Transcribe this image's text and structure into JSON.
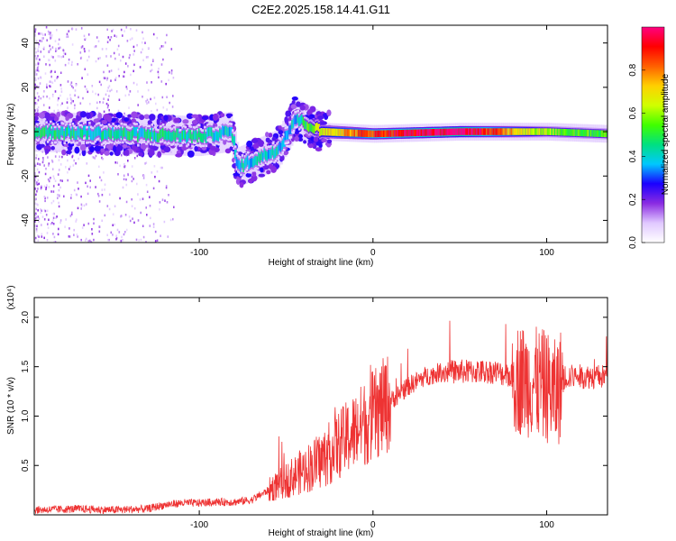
{
  "title": "C2E2.2025.158.14.41.G11",
  "chart_data": [
    {
      "type": "heatmap",
      "xlabel": "Height of straight line (km)",
      "ylabel": "Frequency (Hz)",
      "xlim": [
        -195,
        135
      ],
      "ylim": [
        -50,
        48
      ],
      "x_ticks": [
        -100,
        0,
        100
      ],
      "x_tick_labels": [
        "-100",
        "0",
        "100"
      ],
      "y_ticks": [
        -40,
        -20,
        0,
        20,
        40
      ],
      "y_tick_labels": [
        "-40",
        "-20",
        "0",
        "20",
        "40"
      ],
      "colorbar": {
        "label": "Normalized spectral amplitude",
        "range": [
          0.0,
          1.0
        ],
        "ticks": [
          0.0,
          0.2,
          0.4,
          0.6,
          0.8
        ],
        "tick_labels": [
          "0.0",
          "0.2",
          "0.4",
          "0.6",
          "0.8"
        ],
        "colors": [
          "#ffffff",
          "#e0c8ff",
          "#8a2be2",
          "#1a00ff",
          "#00c8ff",
          "#00e080",
          "#40ff00",
          "#d0ff00",
          "#ffd000",
          "#ff6000",
          "#ff0000",
          "#ff0080"
        ]
      },
      "ridge": [
        {
          "x": -195,
          "center": 0,
          "width": 3,
          "amp": 0.35
        },
        {
          "x": -150,
          "center": -1,
          "width": 3,
          "amp": 0.35
        },
        {
          "x": -100,
          "center": -2,
          "width": 3,
          "amp": 0.35
        },
        {
          "x": -82,
          "center": 0,
          "width": 3,
          "amp": 0.3
        },
        {
          "x": -78,
          "center": -16,
          "width": 3,
          "amp": 0.32
        },
        {
          "x": -55,
          "center": -8,
          "width": 3,
          "amp": 0.32
        },
        {
          "x": -45,
          "center": 6,
          "width": 3,
          "amp": 0.3
        },
        {
          "x": -30,
          "center": 0,
          "width": 2,
          "amp": 0.6
        },
        {
          "x": 0,
          "center": -1,
          "width": 1.5,
          "amp": 0.8
        },
        {
          "x": 50,
          "center": 0,
          "width": 1.5,
          "amp": 0.95
        },
        {
          "x": 100,
          "center": 0,
          "width": 1.5,
          "amp": 0.5
        },
        {
          "x": 135,
          "center": -1,
          "width": 1.5,
          "amp": 0.45
        }
      ]
    },
    {
      "type": "line",
      "xlabel": "Height of straight line (km)",
      "ylabel": "SNR (10 * v/v)",
      "scale_label": "(x10⁴)",
      "xlim": [
        -195,
        135
      ],
      "ylim": [
        0,
        2.2
      ],
      "x_ticks": [
        -100,
        0,
        100
      ],
      "x_tick_labels": [
        "-100",
        "0",
        "100"
      ],
      "y_ticks": [
        0.5,
        1.0,
        1.5,
        2.0
      ],
      "y_tick_labels": [
        "0.5",
        "1.0",
        "1.5",
        "2.0"
      ],
      "color": "#ee3333",
      "x": [
        -195,
        -170,
        -150,
        -130,
        -120,
        -110,
        -100,
        -90,
        -80,
        -70,
        -60,
        -50,
        -40,
        -30,
        -20,
        -10,
        0,
        10,
        20,
        30,
        40,
        50,
        60,
        70,
        80,
        90,
        100,
        105,
        110,
        120,
        135
      ],
      "y": [
        0.05,
        0.06,
        0.05,
        0.06,
        0.1,
        0.12,
        0.12,
        0.13,
        0.13,
        0.15,
        0.25,
        0.35,
        0.45,
        0.55,
        0.7,
        0.85,
        1.0,
        1.15,
        1.3,
        1.4,
        1.45,
        1.45,
        1.45,
        1.45,
        1.4,
        1.35,
        1.3,
        1.2,
        1.4,
        1.4,
        1.4
      ]
    }
  ]
}
